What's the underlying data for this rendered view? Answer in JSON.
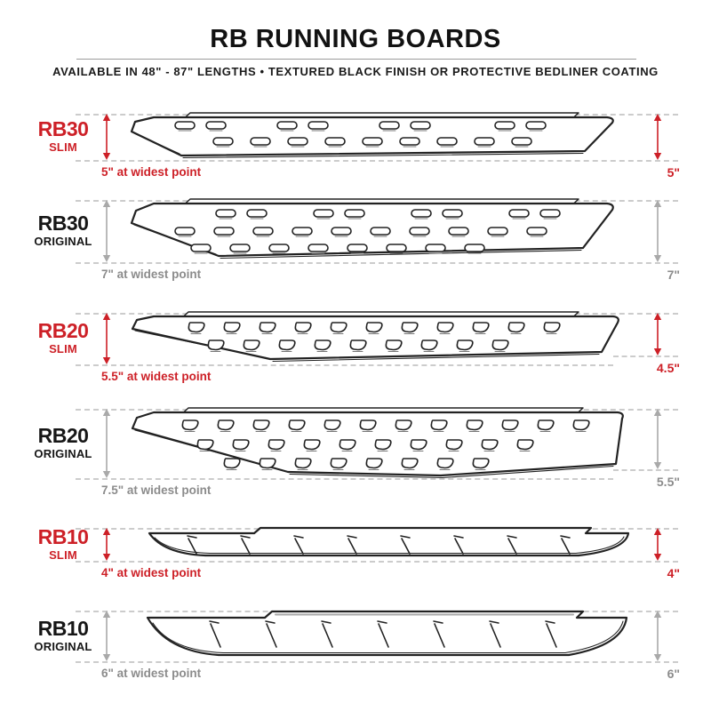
{
  "header": {
    "title": "RB RUNNING BOARDS",
    "subtitle": "AVAILABLE IN 48\" - 87\" LENGTHS   •   TEXTURED BLACK FINISH OR PROTECTIVE BEDLINER COATING"
  },
  "colors": {
    "red": "#cd2027",
    "black_text": "#161616",
    "gray_text": "#8c8c8c",
    "gray_arrow": "#a9a9a9",
    "dash_gray": "#cccccc",
    "line_dark": "#222222"
  },
  "boards": [
    {
      "model": "RB30",
      "variant": "SLIM",
      "accent": "red",
      "width_note": "5\" at widest point",
      "height_label": "5\"",
      "slot_style": "stadium-slots",
      "slot_rows": [
        8,
        9
      ]
    },
    {
      "model": "RB30",
      "variant": "ORIGINAL",
      "accent": "black",
      "width_note": "7\" at widest point",
      "height_label": "7\"",
      "slot_style": "stadium-slots",
      "slot_rows": [
        8,
        10,
        8
      ]
    },
    {
      "model": "RB20",
      "variant": "SLIM",
      "accent": "red",
      "width_note": "5.5\" at widest point",
      "height_label": "4.5\"",
      "slot_style": "d-slots",
      "slot_rows": [
        11,
        9
      ]
    },
    {
      "model": "RB20",
      "variant": "ORIGINAL",
      "accent": "black",
      "width_note": "7.5\" at widest point",
      "height_label": "5.5\"",
      "slot_style": "d-slots",
      "slot_rows": [
        12,
        10,
        8
      ]
    },
    {
      "model": "RB10",
      "variant": "SLIM",
      "accent": "red",
      "width_note": "4\" at widest point",
      "height_label": "4\"",
      "slot_style": "tick-slots",
      "slot_rows": [
        8
      ]
    },
    {
      "model": "RB10",
      "variant": "ORIGINAL",
      "accent": "black",
      "width_note": "6\" at widest point",
      "height_label": "6\"",
      "slot_style": "tick-slots",
      "slot_rows": [
        7
      ]
    }
  ]
}
